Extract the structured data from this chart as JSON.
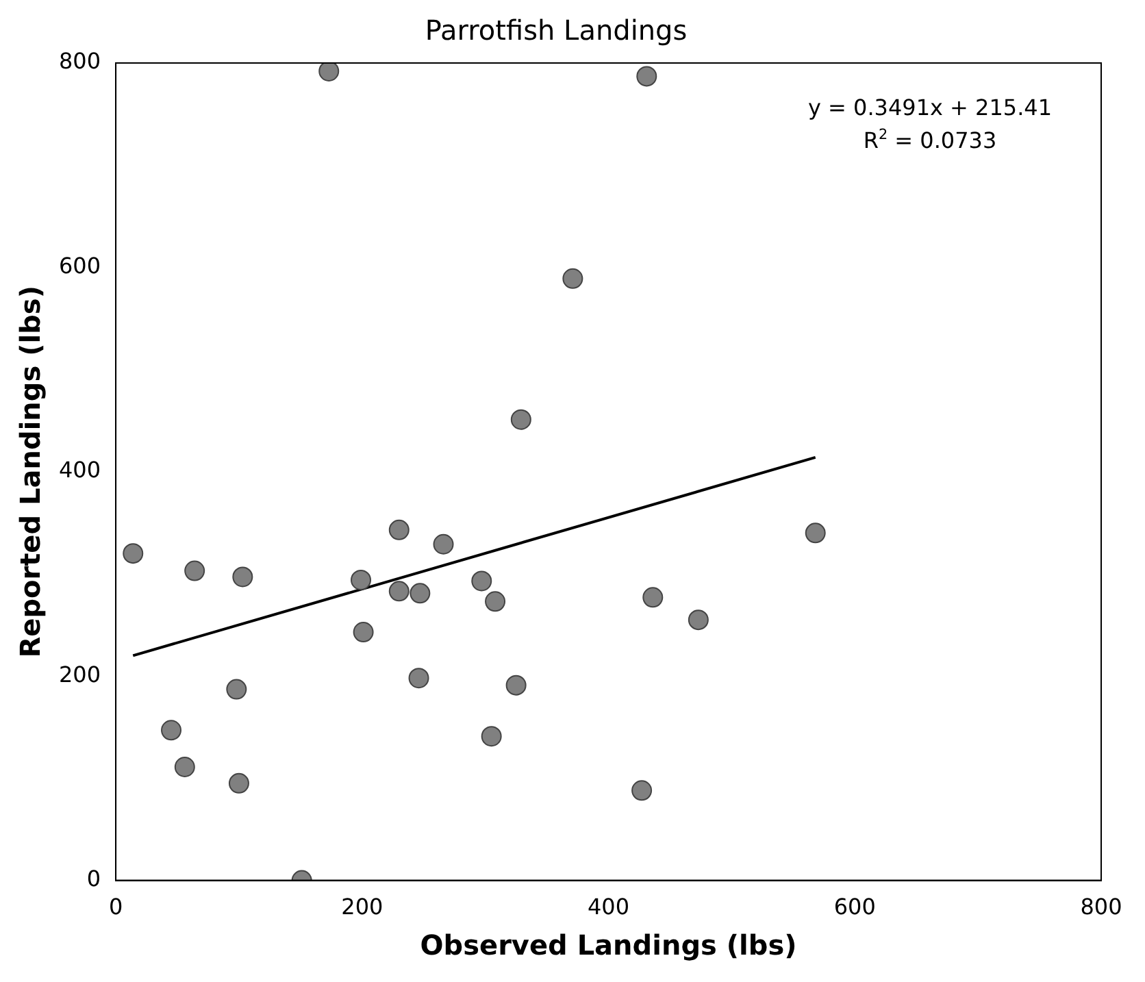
{
  "chart_data": {
    "type": "scatter",
    "title": "Parrotfish Landings",
    "xlabel": "Observed Landings (lbs)",
    "ylabel": "Reported Landings (lbs)",
    "series": [
      {
        "color": "#808080",
        "marker": "circle",
        "x": [
          14,
          64,
          103,
          230,
          266,
          199,
          230,
          247,
          297,
          308,
          201,
          98,
          246,
          325,
          45,
          305,
          56,
          100,
          151,
          173,
          371,
          329,
          431,
          568,
          436,
          473,
          427
        ],
        "values": [
          320,
          303,
          297,
          343,
          329,
          294,
          283,
          281,
          293,
          273,
          243,
          187,
          198,
          191,
          147,
          141,
          111,
          95,
          0,
          792,
          589,
          451,
          787,
          340,
          277,
          255,
          88
        ]
      },
      {
        "type": "line",
        "color": "#000000",
        "marker": "none",
        "line_style": "solid",
        "x": [
          14,
          568
        ],
        "values": [
          220,
          414
        ]
      }
    ],
    "annotations": [
      "y = 0.3491x + 215.41",
      "R$^{2}$ = 0.0733"
    ],
    "xlim": [
      0,
      800
    ],
    "ylim": [
      0,
      800
    ],
    "xticks": [
      0,
      200,
      400,
      600,
      800
    ],
    "yticks": [
      0,
      200,
      400,
      600,
      800
    ],
    "grid": false,
    "legend": false
  }
}
